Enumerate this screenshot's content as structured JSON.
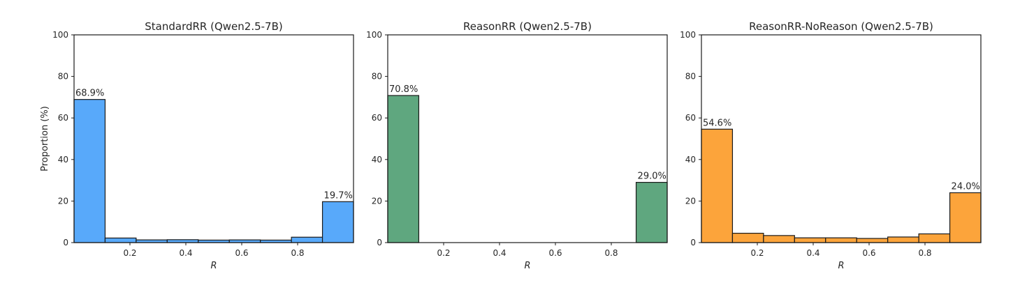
{
  "chart_data": [
    {
      "type": "bar",
      "title": "StandardRR (Qwen2.5-7B)",
      "xlabel": "R",
      "ylabel": "Proportion (%)",
      "ylim": [
        0,
        100
      ],
      "xlim": [
        0,
        1
      ],
      "yticks": [
        "0",
        "20",
        "40",
        "60",
        "80",
        "100"
      ],
      "xticks": [
        "0.2",
        "0.4",
        "0.6",
        "0.8"
      ],
      "bin_edges": [
        0,
        0.1111,
        0.2222,
        0.3333,
        0.4444,
        0.5556,
        0.6667,
        0.7778,
        0.8889,
        1.0
      ],
      "values": [
        68.9,
        2.2,
        1.3,
        1.4,
        1.2,
        1.3,
        1.2,
        2.6,
        19.7
      ],
      "value_labels": [
        "68.9%",
        "",
        "",
        "",
        "",
        "",
        "",
        "",
        "19.7%"
      ],
      "color": "#58a9fa",
      "grid": false
    },
    {
      "type": "bar",
      "title": "ReasonRR (Qwen2.5-7B)",
      "xlabel": "R",
      "ylabel": "",
      "ylim": [
        0,
        100
      ],
      "xlim": [
        0,
        1
      ],
      "yticks": [
        "0",
        "20",
        "40",
        "60",
        "80",
        "100"
      ],
      "xticks": [
        "0.2",
        "0.4",
        "0.6",
        "0.8"
      ],
      "bin_edges": [
        0,
        0.1111,
        0.2222,
        0.3333,
        0.4444,
        0.5556,
        0.6667,
        0.7778,
        0.8889,
        1.0
      ],
      "values": [
        70.8,
        0,
        0,
        0,
        0,
        0,
        0,
        0,
        29.0
      ],
      "value_labels": [
        "70.8%",
        "",
        "",
        "",
        "",
        "",
        "",
        "",
        "29.0%"
      ],
      "color": "#5fa77f",
      "grid": false
    },
    {
      "type": "bar",
      "title": "ReasonRR-NoReason (Qwen2.5-7B)",
      "xlabel": "R",
      "ylabel": "",
      "ylim": [
        0,
        100
      ],
      "xlim": [
        0,
        1
      ],
      "yticks": [
        "0",
        "20",
        "40",
        "60",
        "80",
        "100"
      ],
      "xticks": [
        "0.2",
        "0.4",
        "0.6",
        "0.8"
      ],
      "bin_edges": [
        0,
        0.1111,
        0.2222,
        0.3333,
        0.4444,
        0.5556,
        0.6667,
        0.7778,
        0.8889,
        1.0
      ],
      "values": [
        54.6,
        4.5,
        3.4,
        2.3,
        2.3,
        2.0,
        2.7,
        4.2,
        24.0
      ],
      "value_labels": [
        "54.6%",
        "",
        "",
        "",
        "",
        "",
        "",
        "",
        "24.0%"
      ],
      "color": "#fca43b",
      "grid": false
    }
  ]
}
